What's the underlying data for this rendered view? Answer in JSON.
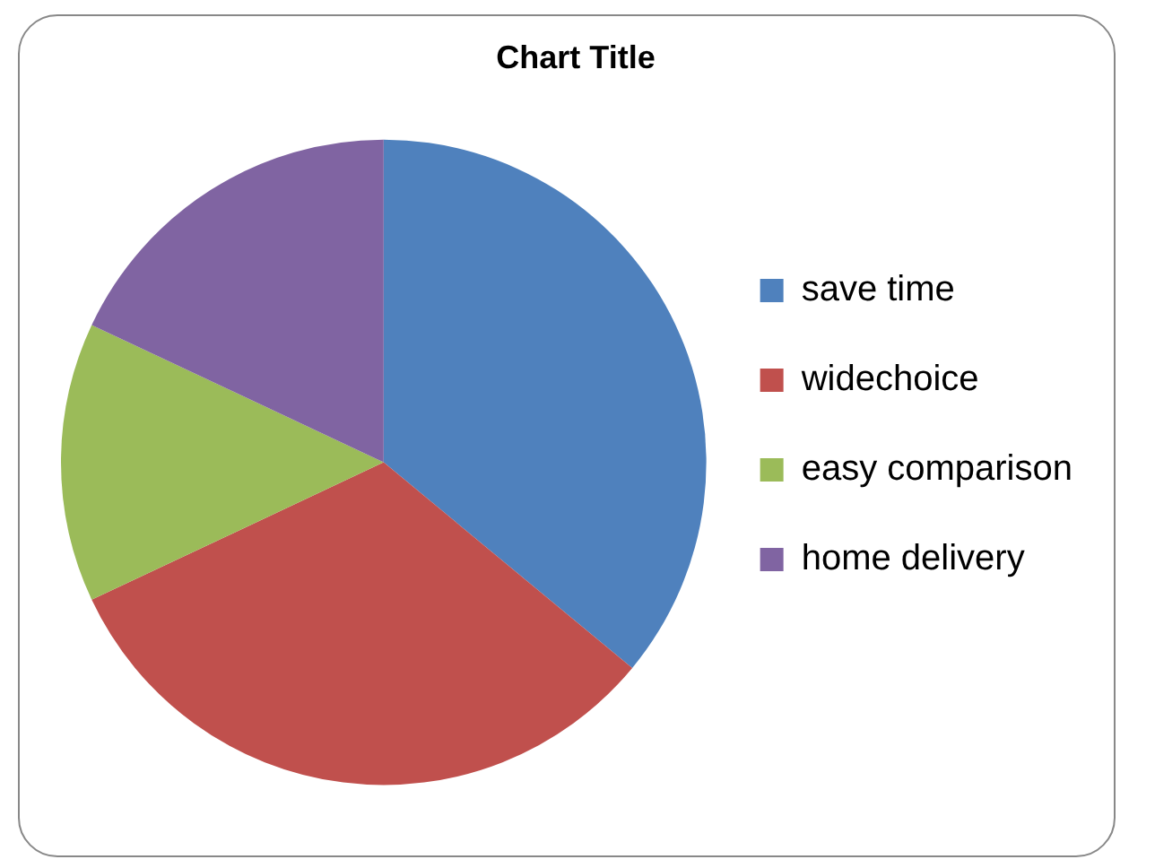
{
  "chart_data": {
    "type": "pie",
    "title": "Chart Title",
    "categories": [
      "save time",
      "widechoice",
      "easy comparison",
      "home delivery"
    ],
    "values": [
      36,
      32,
      14,
      18
    ],
    "colors": [
      "#4f81bd",
      "#c0504d",
      "#9bbb59",
      "#8064a2"
    ],
    "legend": "right"
  }
}
